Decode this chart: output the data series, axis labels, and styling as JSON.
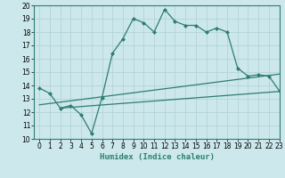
{
  "xlabel": "Humidex (Indice chaleur)",
  "bg_color": "#cce8ec",
  "grid_color": "#b8d8dc",
  "line_color": "#2e7d6e",
  "x_main": [
    0,
    1,
    2,
    3,
    4,
    5,
    6,
    7,
    8,
    9,
    10,
    11,
    12,
    13,
    14,
    15,
    16,
    17,
    18,
    19,
    20,
    21,
    22,
    23
  ],
  "y_main": [
    13.8,
    13.4,
    12.3,
    12.5,
    11.8,
    10.4,
    13.1,
    16.4,
    17.5,
    19.0,
    18.7,
    18.0,
    19.7,
    18.8,
    18.5,
    18.5,
    18.0,
    18.3,
    18.0,
    15.3,
    14.7,
    14.8,
    14.7,
    13.6
  ],
  "x_line2_start": 0,
  "y_line2_start": 12.55,
  "x_line2_end": 23,
  "y_line2_end": 14.85,
  "x_line3_start": 2,
  "y_line3_start": 12.3,
  "x_line3_end": 23,
  "y_line3_end": 13.55,
  "ylim": [
    10,
    20
  ],
  "xlim": [
    -0.5,
    23
  ],
  "yticks": [
    10,
    11,
    12,
    13,
    14,
    15,
    16,
    17,
    18,
    19,
    20
  ],
  "xticks": [
    0,
    1,
    2,
    3,
    4,
    5,
    6,
    7,
    8,
    9,
    10,
    11,
    12,
    13,
    14,
    15,
    16,
    17,
    18,
    19,
    20,
    21,
    22,
    23
  ],
  "tick_fontsize": 5.5,
  "xlabel_fontsize": 6.5
}
